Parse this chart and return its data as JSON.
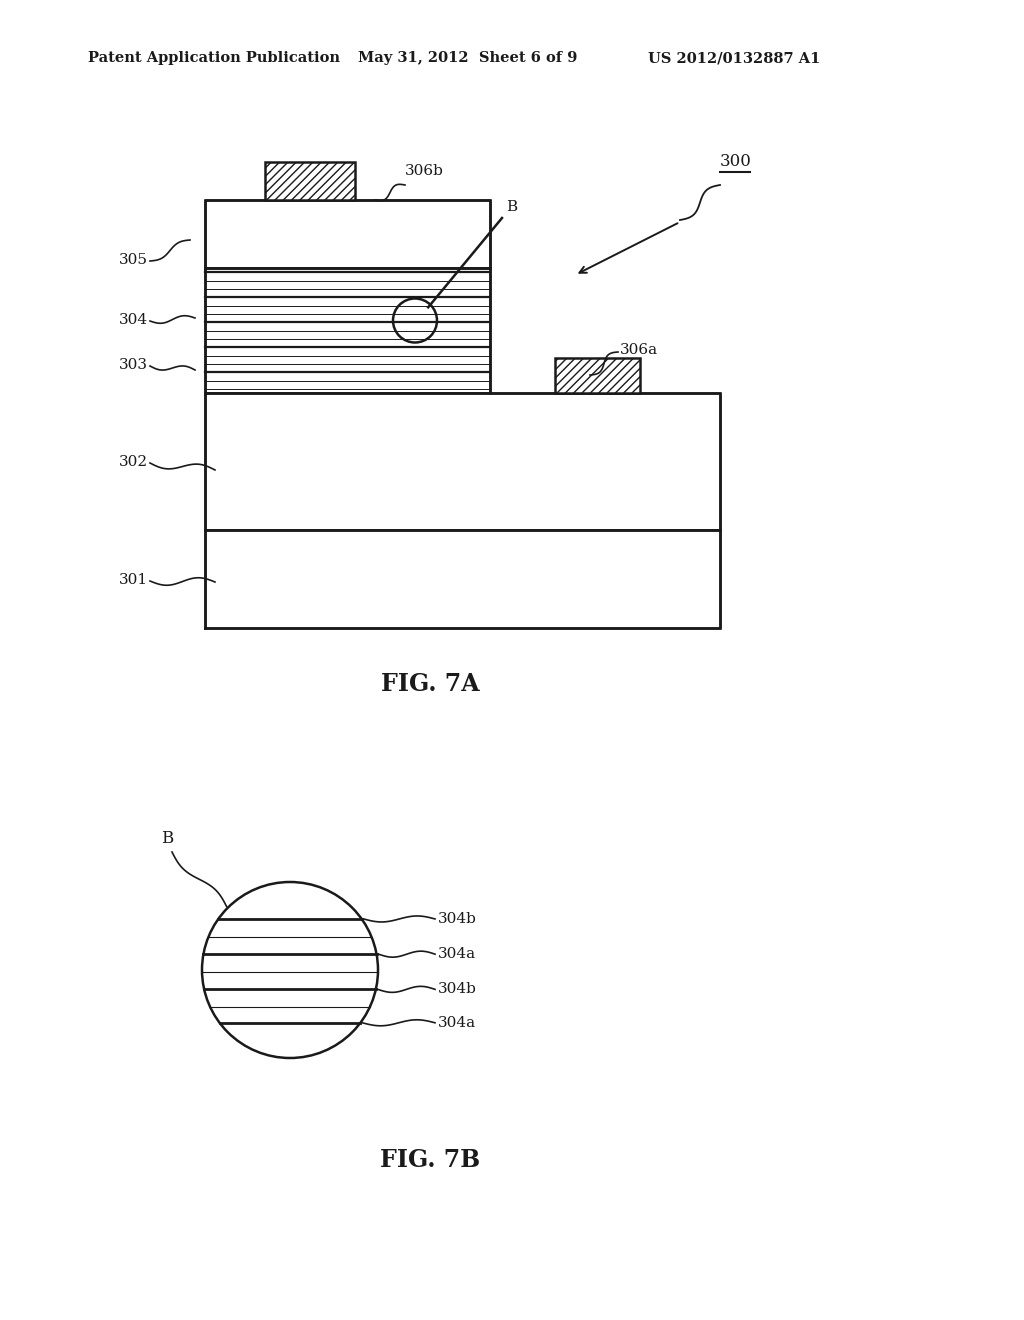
{
  "header_left": "Patent Application Publication",
  "header_mid": "May 31, 2012  Sheet 6 of 9",
  "header_right": "US 2012/0132887 A1",
  "fig7a_label": "FIG. 7A",
  "fig7b_label": "FIG. 7B",
  "bg_color": "#ffffff",
  "line_color": "#1a1a1a",
  "label_300": "300",
  "label_301": "301",
  "label_302": "302",
  "label_303": "303",
  "label_304": "304",
  "label_305": "305",
  "label_306a": "306a",
  "label_306b": "306b"
}
